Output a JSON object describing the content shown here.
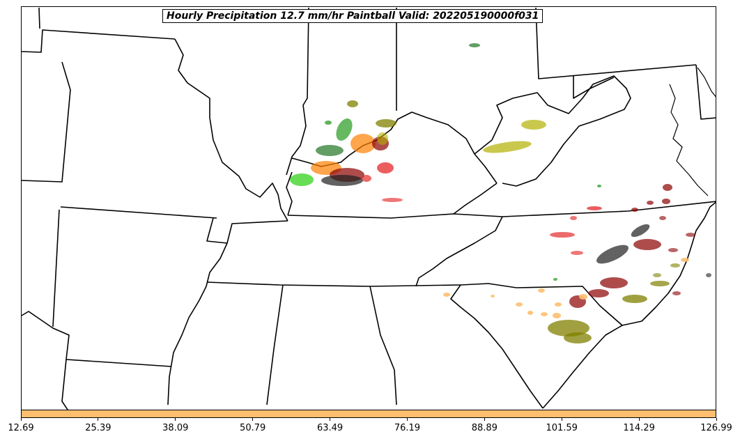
{
  "title": "Hourly Precipitation 12.7 mm/hr Paintball Valid: 202205190000f031",
  "colors": {
    "colorbar_fill": "#fdbf6f",
    "state_lines": "#000000",
    "blob_palette": [
      "#33a02c",
      "#6a3d0a",
      "#ff7f00",
      "#e31a1c",
      "#1f1f1f",
      "#808000",
      "#b2b000",
      "#fdbf6f",
      "#8b0000"
    ]
  },
  "colorbar": {
    "ticks": [
      "12.69",
      "25.39",
      "38.09",
      "50.79",
      "63.49",
      "76.19",
      "88.89",
      "101.59",
      "114.29",
      "126.99"
    ]
  },
  "map": {
    "region": "Central / Southeastern United States",
    "features": [
      "state-boundaries",
      "coastline",
      "precipitation-paintball-blobs"
    ]
  }
}
